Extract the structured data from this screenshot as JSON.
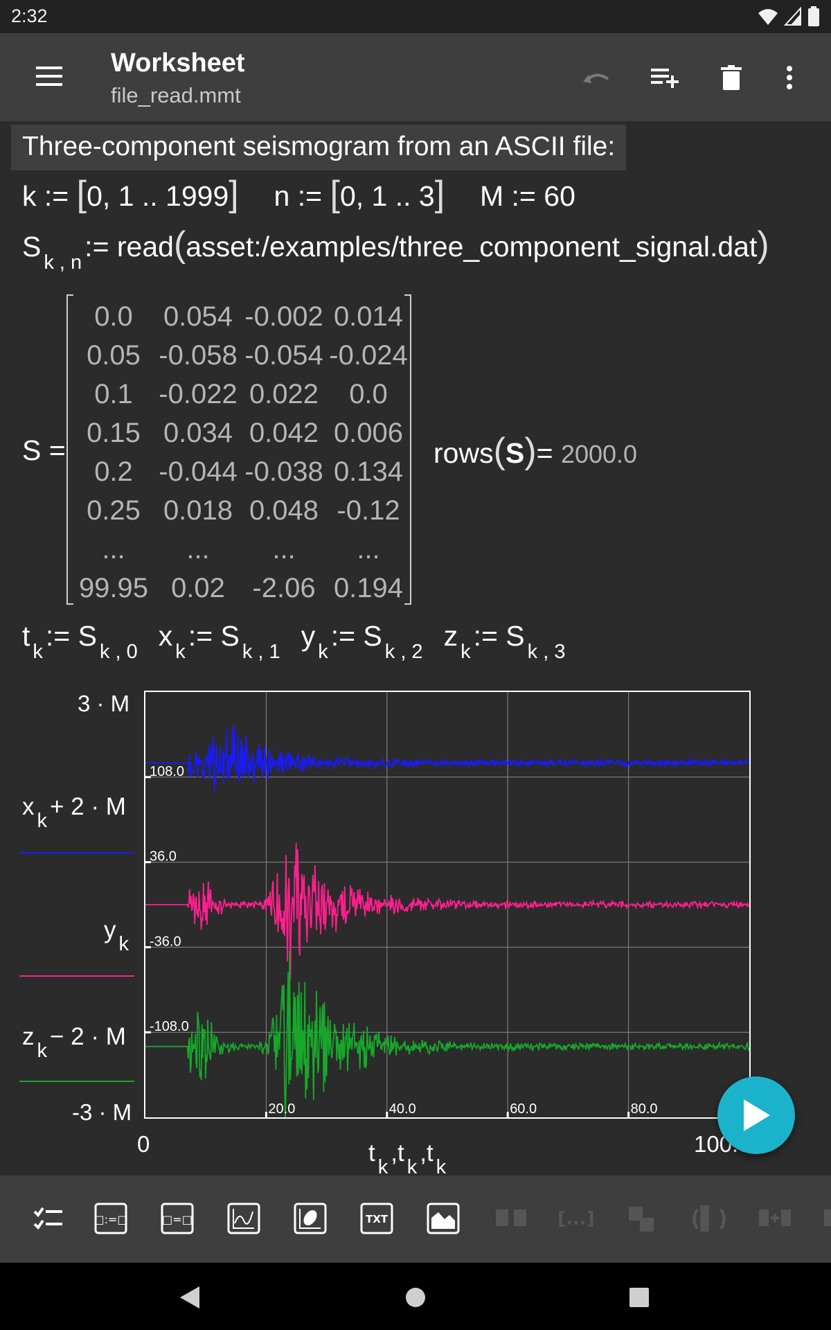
{
  "status_bar": {
    "time": "2:32"
  },
  "app_bar": {
    "title": "Worksheet",
    "subtitle": "file_read.mmt"
  },
  "worksheet": {
    "text_block": "Three-component seismogram from an ASCII file:",
    "defs": {
      "k_lhs": "k",
      "k_range": "0, 1 .. 1999",
      "n_lhs": "n",
      "n_range": "0, 1 .. 3",
      "m_def": "M := 60"
    },
    "read_row": {
      "lhs": "S",
      "sub": "k , n",
      "assign": ":= read",
      "arg": "asset:/examples/three_component_signal.dat"
    },
    "matrix": {
      "label": "S =",
      "rows": [
        [
          "0.0",
          "0.054",
          "-0.002",
          "0.014"
        ],
        [
          "0.05",
          "-0.058",
          "-0.054",
          "-0.024"
        ],
        [
          "0.1",
          "-0.022",
          "0.022",
          "0.0"
        ],
        [
          "0.15",
          "0.034",
          "0.042",
          "0.006"
        ],
        [
          "0.2",
          "-0.044",
          "-0.038",
          "0.134"
        ],
        [
          "0.25",
          "0.018",
          "0.048",
          "-0.12"
        ],
        [
          "...",
          "...",
          "...",
          "..."
        ],
        [
          "99.95",
          "0.02",
          "-2.06",
          "0.194"
        ]
      ],
      "rows_func": "rows",
      "rows_arg": "S",
      "rows_eq": "=",
      "rows_value": "2000.0"
    },
    "assignments": [
      {
        "lhs": "t",
        "lhs_sub": "k",
        "op": ":= S",
        "rhs_sub": "k , 0"
      },
      {
        "lhs": "x",
        "lhs_sub": "k",
        "op": ":= S",
        "rhs_sub": "k , 1"
      },
      {
        "lhs": "y",
        "lhs_sub": "k",
        "op": ":= S",
        "rhs_sub": "k , 2"
      },
      {
        "lhs": "z",
        "lhs_sub": "k",
        "op": ":= S",
        "rhs_sub": "k , 3"
      }
    ]
  },
  "chart_data": {
    "type": "line",
    "title": "",
    "xlabel": "t k , t k , t k",
    "x_range": [
      0,
      100
    ],
    "y_range": [
      -180,
      180
    ],
    "y_min_label": "-3 · M",
    "y_max_label": "3 · M",
    "x_min_label": "0",
    "x_max_label": "100.0",
    "x_ticks": [
      {
        "value": 20,
        "label": "20.0"
      },
      {
        "value": 40,
        "label": "40.0"
      },
      {
        "value": 60,
        "label": "60.0"
      },
      {
        "value": 80,
        "label": "80.0"
      }
    ],
    "y_ticks": [
      {
        "value": 108,
        "label": "108.0"
      },
      {
        "value": 36,
        "label": "36.0"
      },
      {
        "value": -36,
        "label": "-36.0"
      },
      {
        "value": -108,
        "label": "-108.0"
      }
    ],
    "grid": true,
    "series": [
      {
        "name": "x k + 2 · M",
        "legend_var": "x",
        "legend_sub": "k",
        "legend_rest": "+ 2 · M",
        "offset": 120,
        "color": "#1a1aff",
        "onset": 7,
        "peak_time": 13,
        "peak_amp": 40,
        "seed": 11
      },
      {
        "name": "y k",
        "legend_var": "y",
        "legend_sub": "k",
        "legend_rest": "",
        "offset": 0,
        "color": "#ff1f8e",
        "onset": 7,
        "peak_time": 24,
        "peak_amp": 65,
        "seed": 29
      },
      {
        "name": "z k − 2 · M",
        "legend_var": "z",
        "legend_sub": "k",
        "legend_rest": "− 2 · M",
        "offset": -120,
        "color": "#16a82a",
        "onset": 7,
        "peak_time": 24,
        "peak_amp": 95,
        "seed": 53
      }
    ]
  },
  "palette": {
    "items": [
      "checklist-icon",
      "equation-icon",
      "result-icon",
      "plot-function-icon",
      "plot-parametric-icon",
      "text-icon",
      "image-icon",
      "table-icon",
      "list-icon",
      "matrix-icon",
      "paren-icon",
      "insert-col-icon"
    ]
  }
}
